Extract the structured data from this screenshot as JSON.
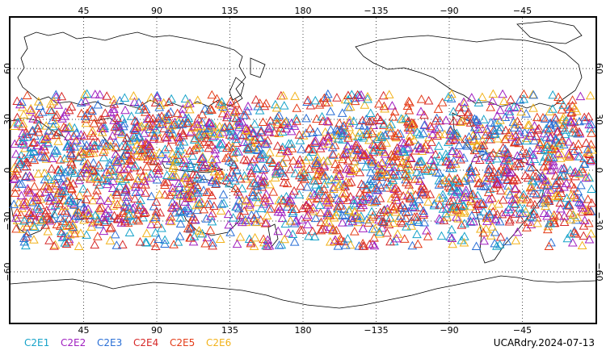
{
  "map": {
    "lon_ticks_top": [
      "45",
      "90",
      "135",
      "180",
      "−135",
      "−90",
      "−45"
    ],
    "lon_ticks_bottom": [
      "45",
      "90",
      "135",
      "180",
      "−135",
      "−90",
      "−45"
    ],
    "lat_ticks": [
      "60",
      "30",
      "0",
      "−30",
      "−60"
    ],
    "lon_tick_values": [
      45,
      90,
      135,
      180,
      225,
      270,
      315
    ],
    "lat_tick_values": [
      60,
      30,
      0,
      -30,
      -60
    ],
    "lon_range": [
      0,
      360
    ],
    "lat_range": [
      -90,
      90
    ],
    "observation_lat_band": [
      -45,
      45
    ],
    "marker_shape": "triangle-open",
    "grid": "dotted"
  },
  "legend": [
    {
      "label": "C2E1",
      "color": "#17a3c9"
    },
    {
      "label": "C2E2",
      "color": "#a020c0"
    },
    {
      "label": "C2E3",
      "color": "#2a6fd6"
    },
    {
      "label": "C2E4",
      "color": "#d62828"
    },
    {
      "label": "C2E5",
      "color": "#e43c18"
    },
    {
      "label": "C2E6",
      "color": "#f2b21a"
    }
  ],
  "credit": "UCARdry.2024-07-13"
}
